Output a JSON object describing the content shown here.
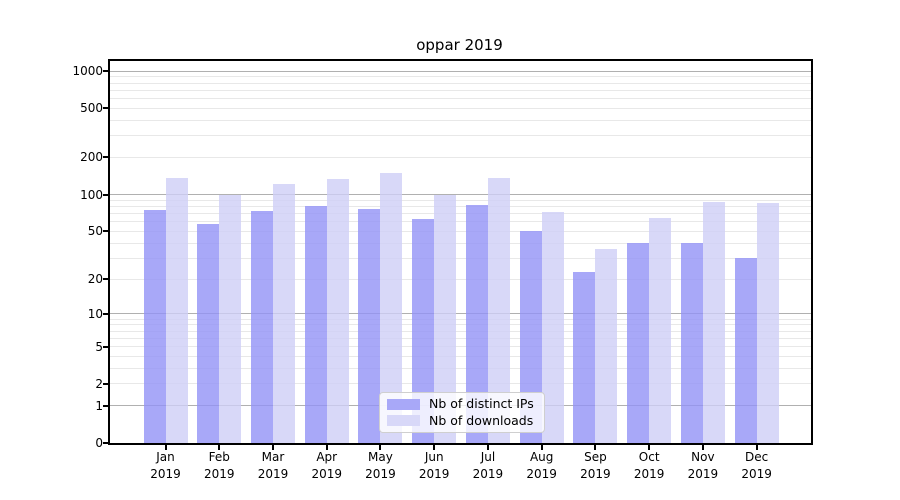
{
  "chart_data": {
    "type": "bar",
    "title": "oppar 2019",
    "categories": [
      "Jan 2019",
      "Feb 2019",
      "Mar 2019",
      "Apr 2019",
      "May 2019",
      "Jun 2019",
      "Jul 2019",
      "Aug 2019",
      "Sep 2019",
      "Oct 2019",
      "Nov 2019",
      "Dec 2019"
    ],
    "series": [
      {
        "name": "Nb of distinct IPs",
        "values": [
          75,
          57,
          74,
          81,
          76,
          63,
          82,
          50,
          23,
          40,
          40,
          30
        ]
      },
      {
        "name": "Nb of downloads",
        "values": [
          136,
          100,
          122,
          134,
          150,
          100,
          136,
          72,
          36,
          64,
          87,
          85
        ]
      }
    ],
    "xlabel": "",
    "ylabel": "",
    "y_scale": "log1p",
    "y_ticks": [
      0,
      1,
      2,
      5,
      10,
      20,
      50,
      100,
      200,
      500,
      1000
    ],
    "y_major_gridlines": [
      1,
      10,
      100,
      1000
    ],
    "ylim": [
      0,
      1205
    ],
    "grid": true,
    "legend_position": "lower center"
  },
  "colors": {
    "ips_bar": "rgba(146,146,246,0.8)",
    "downloads_bar": "rgba(206,206,246,0.8)",
    "ips_swatch": "#a8a8f8",
    "downloads_swatch": "#d8d8f8",
    "major_grid": "#b0b0b0",
    "minor_grid": "#e8e8e8",
    "spine": "#000000",
    "text": "#000000"
  }
}
